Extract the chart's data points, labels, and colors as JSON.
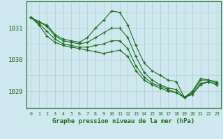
{
  "title": "Graphe pression niveau de la mer (hPa)",
  "background_color": "#cfe8f0",
  "grid_color": "#b0cccc",
  "line_color": "#1a6b1a",
  "series": [
    [
      1031.35,
      1031.2,
      1031.1,
      1030.8,
      1030.65,
      1030.6,
      1030.55,
      1030.7,
      1031.0,
      1031.25,
      1031.55,
      1031.5,
      1031.1,
      1030.45,
      1029.9,
      1029.65,
      1029.5,
      1029.35,
      1029.3,
      1028.8,
      1029.0,
      1029.4,
      1029.35,
      1029.3
    ],
    [
      1031.35,
      1031.2,
      1031.05,
      1030.75,
      1030.6,
      1030.55,
      1030.5,
      1030.55,
      1030.7,
      1030.85,
      1031.0,
      1031.0,
      1030.7,
      1030.1,
      1029.6,
      1029.35,
      1029.2,
      1029.1,
      1029.05,
      1028.8,
      1028.95,
      1029.35,
      1029.35,
      1029.25
    ],
    [
      1031.35,
      1031.15,
      1030.9,
      1030.65,
      1030.5,
      1030.45,
      1030.4,
      1030.4,
      1030.45,
      1030.5,
      1030.6,
      1030.6,
      1030.35,
      1029.8,
      1029.45,
      1029.25,
      1029.15,
      1029.05,
      1028.95,
      1028.8,
      1028.9,
      1029.25,
      1029.3,
      1029.2
    ],
    [
      1031.35,
      1031.1,
      1030.75,
      1030.55,
      1030.45,
      1030.4,
      1030.35,
      1030.3,
      1030.25,
      1030.2,
      1030.25,
      1030.3,
      1030.1,
      1029.65,
      1029.35,
      1029.2,
      1029.1,
      1029.0,
      1028.95,
      1028.8,
      1028.9,
      1029.2,
      1029.3,
      1029.2
    ]
  ],
  "x_labels": [
    "0",
    "1",
    "2",
    "3",
    "4",
    "5",
    "6",
    "7",
    "8",
    "9",
    "10",
    "11",
    "12",
    "13",
    "14",
    "15",
    "16",
    "17",
    "18",
    "19",
    "20",
    "21",
    "22",
    "23"
  ],
  "y_ticks": [
    1029,
    1030,
    1031
  ],
  "ylim": [
    1028.45,
    1031.85
  ],
  "xlim": [
    -0.5,
    23.5
  ],
  "figsize": [
    3.2,
    2.0
  ],
  "dpi": 100
}
